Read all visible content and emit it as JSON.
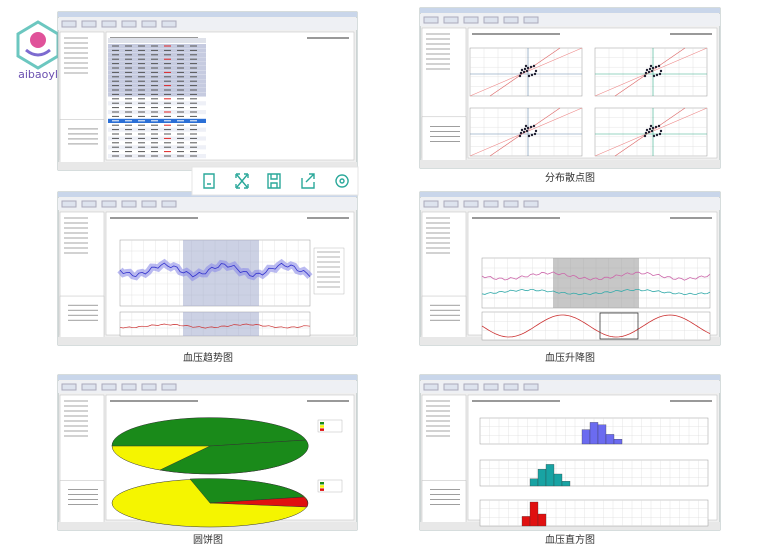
{
  "logo": {
    "text": "aibaoyl"
  },
  "captions": [
    "分布散点图",
    "血压趋势图",
    "血压升降图",
    "圆饼图",
    "血压直方图"
  ]
}
